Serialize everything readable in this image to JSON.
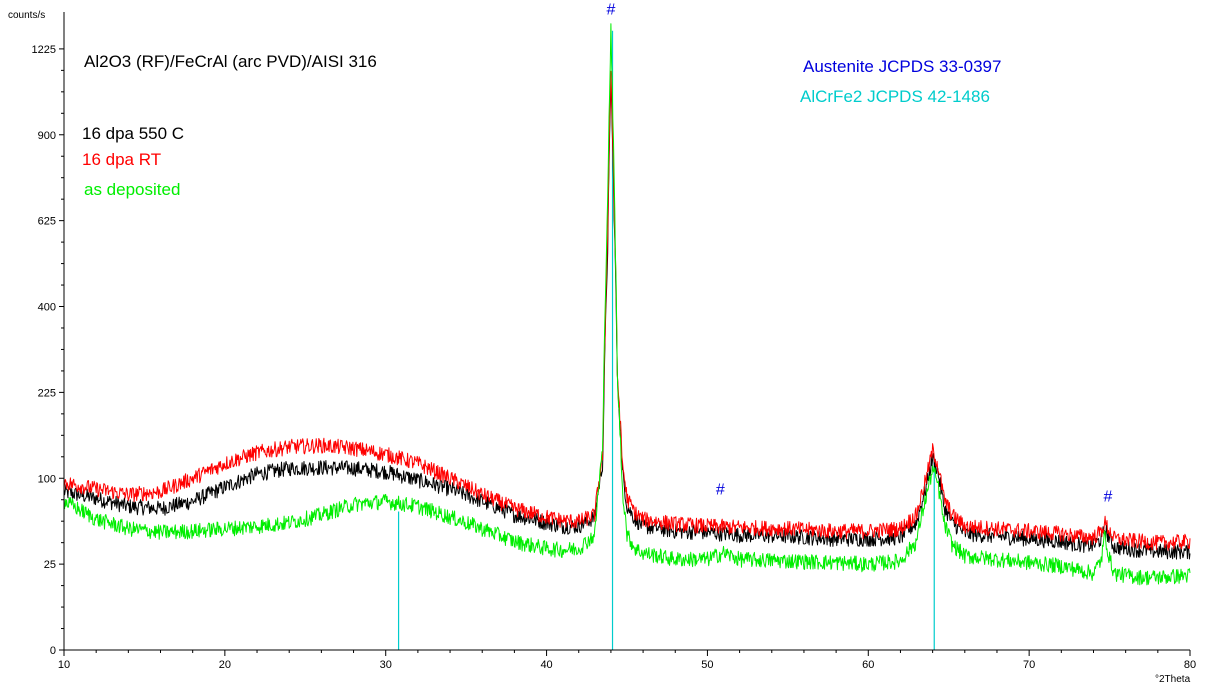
{
  "chart_data": {
    "type": "line",
    "ylabel": "counts/s",
    "xlabel": "°2Theta",
    "y_scale": "sqrt",
    "xlim": [
      10,
      80
    ],
    "ylim": [
      0,
      1380
    ],
    "x_ticks": [
      10,
      20,
      30,
      40,
      50,
      60,
      70,
      80
    ],
    "y_ticks": [
      0,
      25,
      100,
      225,
      400,
      625,
      900,
      1225
    ],
    "title": "Al2O3 (RF)/FeCrAl (arc PVD)/AISI 316",
    "grid": false,
    "legend_position": "top-left",
    "series": [
      {
        "name": "16 dpa 550 C",
        "color": "#000000",
        "x": [
          10,
          12,
          14,
          16,
          18,
          20,
          22,
          24,
          26,
          28,
          30,
          32,
          34,
          36,
          38,
          40,
          41,
          42,
          43,
          43.5,
          43.8,
          44.0,
          44.2,
          44.4,
          44.7,
          45,
          45.5,
          46,
          47,
          48,
          50,
          52,
          55,
          58,
          60,
          62,
          63,
          63.6,
          64.0,
          64.3,
          64.7,
          65.2,
          66,
          68,
          70,
          72,
          73,
          74,
          74.5,
          74.7,
          75.0,
          75.3,
          76,
          77,
          78,
          80
        ],
        "y": [
          85,
          78,
          70,
          68,
          75,
          90,
          105,
          112,
          113,
          112,
          108,
          98,
          88,
          75,
          62,
          55,
          52,
          52,
          60,
          120,
          550,
          1100,
          650,
          250,
          110,
          70,
          58,
          52,
          50,
          48,
          47,
          45,
          44,
          42,
          42,
          43,
          55,
          90,
          125,
          110,
          70,
          55,
          46,
          44,
          42,
          40,
          38,
          37,
          42,
          50,
          42,
          36,
          35,
          34,
          33,
          33
        ]
      },
      {
        "name": "16 dpa RT",
        "color": "#ff0000",
        "x": [
          10,
          12,
          14,
          16,
          18,
          20,
          22,
          24,
          26,
          28,
          30,
          32,
          34,
          36,
          38,
          40,
          41,
          42,
          43,
          43.5,
          43.8,
          44.0,
          44.2,
          44.4,
          44.7,
          45,
          45.5,
          46,
          47,
          48,
          50,
          52,
          55,
          58,
          60,
          62,
          63,
          63.6,
          64.0,
          64.3,
          64.7,
          65.2,
          66,
          68,
          70,
          72,
          73,
          74,
          74.5,
          74.7,
          75.0,
          75.3,
          76,
          77,
          78,
          80
        ],
        "y": [
          95,
          88,
          82,
          85,
          100,
          118,
          132,
          140,
          142,
          138,
          130,
          118,
          100,
          82,
          68,
          60,
          57,
          56,
          62,
          130,
          600,
          1150,
          680,
          260,
          120,
          78,
          64,
          58,
          56,
          54,
          52,
          51,
          50,
          48,
          48,
          50,
          62,
          100,
          135,
          118,
          78,
          62,
          52,
          50,
          48,
          46,
          44,
          43,
          48,
          55,
          48,
          42,
          41,
          40,
          39,
          40
        ]
      },
      {
        "name": "as deposited",
        "color": "#00ee00",
        "x": [
          10,
          12,
          14,
          16,
          18,
          20,
          22,
          24,
          26,
          28,
          30,
          32,
          34,
          36,
          38,
          40,
          41,
          42,
          43,
          43.5,
          43.8,
          44.0,
          44.2,
          44.4,
          44.7,
          45,
          45.5,
          46,
          47,
          48,
          50,
          51,
          52,
          55,
          58,
          60,
          62,
          63,
          63.6,
          64.0,
          64.3,
          64.7,
          65.2,
          66,
          68,
          70,
          72,
          73,
          74,
          74.5,
          74.7,
          75.0,
          75.3,
          76,
          77,
          78,
          80
        ],
        "y": [
          75,
          58,
          50,
          47,
          48,
          50,
          52,
          55,
          62,
          72,
          75,
          70,
          60,
          50,
          40,
          35,
          34,
          35,
          45,
          140,
          700,
          1300,
          750,
          250,
          90,
          45,
          35,
          32,
          30,
          28,
          28,
          32,
          28,
          27,
          26,
          25,
          27,
          40,
          80,
          110,
          95,
          55,
          38,
          30,
          28,
          26,
          24,
          22,
          20,
          28,
          45,
          28,
          20,
          19,
          18,
          18,
          19
        ]
      }
    ],
    "reference_lines": {
      "name": "AlCrFe2 JCPDS 42-1486",
      "color": "#00cccc",
      "x": [
        30.8,
        44.1,
        64.1
      ],
      "y": [
        65,
        1300,
        120
      ]
    },
    "peak_markers": {
      "symbol": "#",
      "legend": "Austenite JCPDS 33-0397",
      "color": "#0000dd",
      "x": [
        44.0,
        50.8,
        74.9
      ],
      "y": [
        1370,
        82,
        75
      ]
    }
  },
  "annotations": {
    "sample_title": "Al2O3 (RF)/FeCrAl (arc PVD)/AISI 316",
    "legend_550": "16 dpa 550 C",
    "legend_rt": "16 dpa RT",
    "legend_asdep": "as deposited",
    "ref_austenite": "Austenite JCPDS 33-0397",
    "ref_alcrfe2": "AlCrFe2 JCPDS 42-1486"
  },
  "colors": {
    "black_series": "#000000",
    "red_series": "#ff0000",
    "green_series": "#00ee00",
    "austenite": "#0000dd",
    "alcrfe2": "#00cccc"
  }
}
